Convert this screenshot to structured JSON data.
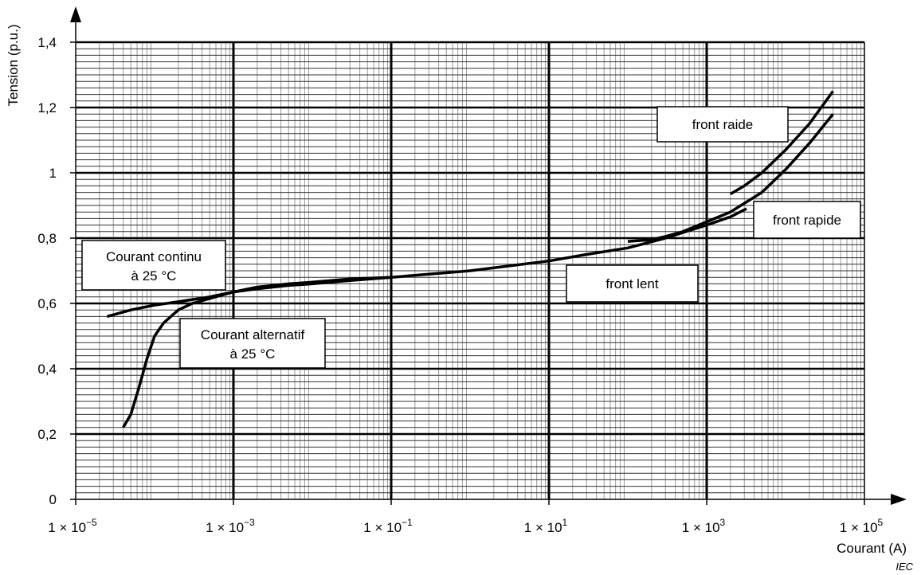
{
  "chart_data": {
    "type": "line",
    "xlabel": "Courant  (A)",
    "ylabel": "Tension (p.u.)",
    "x_scale": "log",
    "xlim": [
      1e-05,
      100000.0
    ],
    "ylim": [
      0,
      1.4
    ],
    "grid": true,
    "x_ticks": [
      {
        "value": 1e-05,
        "mant": "1 × 10",
        "exp": "−5"
      },
      {
        "value": 0.001,
        "mant": "1 × 10",
        "exp": "−3"
      },
      {
        "value": 0.1,
        "mant": "1 × 10",
        "exp": "−1"
      },
      {
        "value": 10.0,
        "mant": "1 × 10",
        "exp": "1"
      },
      {
        "value": 1000.0,
        "mant": "1 × 10",
        "exp": "3"
      },
      {
        "value": 100000.0,
        "mant": "1 × 10",
        "exp": "5"
      }
    ],
    "y_ticks": [
      {
        "value": 0,
        "label": "0"
      },
      {
        "value": 0.2,
        "label": "0,2"
      },
      {
        "value": 0.4,
        "label": "0,4"
      },
      {
        "value": 0.6,
        "label": "0,6"
      },
      {
        "value": 0.8,
        "label": "0,8"
      },
      {
        "value": 1.0,
        "label": "1"
      },
      {
        "value": 1.2,
        "label": "1,2"
      },
      {
        "value": 1.4,
        "label": "1,4"
      }
    ],
    "series": [
      {
        "x": [
          2.5e-05,
          5e-05,
          0.0001,
          0.0002,
          0.0005,
          0.001,
          0.002,
          0.005,
          0.01,
          0.03,
          0.1,
          1,
          10
        ],
        "y": [
          0.56,
          0.58,
          0.595,
          0.605,
          0.62,
          0.635,
          0.645,
          0.655,
          0.66,
          0.67,
          0.68,
          0.7,
          0.73
        ]
      },
      {
        "x": [
          4e-05,
          5e-05,
          6.3e-05,
          8e-05,
          0.0001,
          0.00013,
          0.0002,
          0.0003,
          0.0005,
          0.001,
          0.002,
          0.005,
          0.01,
          0.03,
          0.1
        ],
        "y": [
          0.22,
          0.26,
          0.34,
          0.43,
          0.5,
          0.54,
          0.58,
          0.6,
          0.615,
          0.635,
          0.65,
          0.66,
          0.665,
          0.675,
          0.68
        ]
      },
      {
        "x": [
          10,
          30,
          100,
          300,
          1000,
          2000,
          3200
        ],
        "y": [
          0.73,
          0.75,
          0.77,
          0.8,
          0.84,
          0.865,
          0.89
        ]
      },
      {
        "x": [
          100,
          200,
          300,
          500,
          1000,
          2000,
          5000,
          10000.0,
          20000.0,
          40000.0
        ],
        "y": [
          0.79,
          0.795,
          0.805,
          0.82,
          0.85,
          0.88,
          0.94,
          1.01,
          1.09,
          1.18
        ]
      },
      {
        "x": [
          2000,
          3000,
          5000,
          10000.0,
          20000.0,
          40000.0
        ],
        "y": [
          0.935,
          0.96,
          1.0,
          1.07,
          1.15,
          1.25
        ]
      }
    ],
    "annotations": [
      {
        "text": "Courant continu",
        "text2": "à 25 °C"
      },
      {
        "text": "Courant alternatif",
        "text2": "à 25 °C"
      },
      {
        "text": "front lent"
      },
      {
        "text": "front rapide"
      },
      {
        "text": "front raide"
      }
    ],
    "credit": "IEC"
  }
}
